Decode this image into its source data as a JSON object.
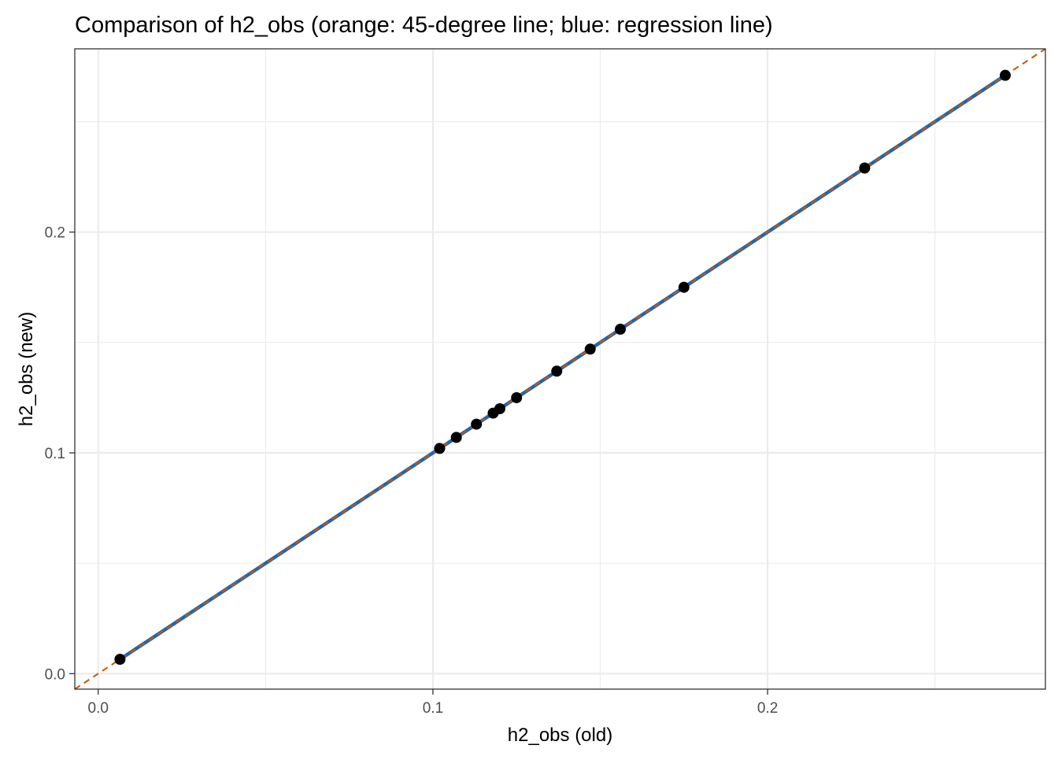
{
  "chart_data": {
    "type": "scatter",
    "title": "Comparison of h2_obs (orange: 45-degree line; blue: regression line)",
    "xlabel": "h2_obs (old)",
    "ylabel": "h2_obs (new)",
    "xlim": [
      -0.007,
      0.283
    ],
    "ylim": [
      -0.007,
      0.283
    ],
    "x_ticks": [
      0.0,
      0.1,
      0.2
    ],
    "x_tick_labels": [
      "0.0",
      "0.1",
      "0.2"
    ],
    "y_ticks": [
      0.0,
      0.1,
      0.2
    ],
    "y_tick_labels": [
      "0.0",
      "0.1",
      "0.2"
    ],
    "minor_grid": [
      0.05,
      0.15,
      0.25
    ],
    "grid": true,
    "points": {
      "color": "#000000",
      "x": [
        0.0065,
        0.102,
        0.107,
        0.113,
        0.118,
        0.12,
        0.125,
        0.137,
        0.147,
        0.156,
        0.175,
        0.229,
        0.271
      ],
      "y": [
        0.0065,
        0.102,
        0.107,
        0.113,
        0.118,
        0.12,
        0.125,
        0.137,
        0.147,
        0.156,
        0.175,
        0.229,
        0.271
      ]
    },
    "reference_line": {
      "kind": "45-degree",
      "slope": 1,
      "intercept": 0,
      "color": "#CC5500",
      "dashed": true
    },
    "regression_line": {
      "slope": 1,
      "intercept": 0,
      "x_range": [
        0.0065,
        0.271
      ],
      "color": "#2166AC"
    }
  }
}
